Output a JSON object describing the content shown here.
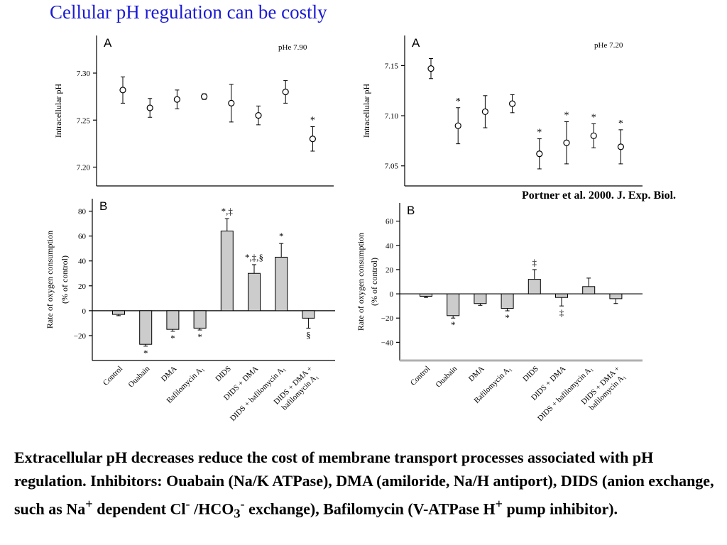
{
  "title": "Cellular pH regulation can be costly",
  "citation": "Portner et al. 2000. J. Exp. Biol.",
  "caption": {
    "p1": "Extracellular pH decreases reduce the cost of membrane transport processes associated with pH regulation.  Inhibitors: Ouabain (Na/K ATPase), DMA (amiloride, Na/H antiport), DIDS (anion exchange, such as Na",
    "sup1": "+",
    "p2": " dependent Cl",
    "sup2": "-",
    "p3": " /HCO",
    "sub1": "3",
    "sup3": "-",
    "p4": " exchange), Bafilomycin (V-ATPase H",
    "sup4": "+",
    "p5": " pump inhibitor)."
  },
  "chart_data": [
    {
      "type": "scatter",
      "panel": "A",
      "condition": "pHe 7.90",
      "ylabel": "Intracellular pH",
      "ylim": [
        7.18,
        7.34
      ],
      "yticks": [
        "7.30",
        "7.25",
        "7.20"
      ],
      "points": [
        {
          "y": 7.282,
          "err": 0.014,
          "mark": ""
        },
        {
          "y": 7.263,
          "err": 0.01,
          "mark": ""
        },
        {
          "y": 7.272,
          "err": 0.01,
          "mark": ""
        },
        {
          "y": 7.275,
          "err": 0.003,
          "mark": ""
        },
        {
          "y": 7.268,
          "err": 0.02,
          "mark": ""
        },
        {
          "y": 7.255,
          "err": 0.01,
          "mark": ""
        },
        {
          "y": 7.28,
          "err": 0.012,
          "mark": ""
        },
        {
          "y": 7.23,
          "err": 0.013,
          "mark": "*"
        }
      ]
    },
    {
      "type": "scatter",
      "panel": "A",
      "condition": "pHe 7.20",
      "ylabel": "Intracellular pH",
      "ylim": [
        7.03,
        7.18
      ],
      "yticks": [
        "7.15",
        "7.10",
        "7.05"
      ],
      "points": [
        {
          "y": 7.147,
          "err": 0.01,
          "mark": ""
        },
        {
          "y": 7.09,
          "err": 0.018,
          "mark": "*"
        },
        {
          "y": 7.104,
          "err": 0.016,
          "mark": ""
        },
        {
          "y": 7.112,
          "err": 0.009,
          "mark": ""
        },
        {
          "y": 7.062,
          "err": 0.015,
          "mark": "*"
        },
        {
          "y": 7.073,
          "err": 0.021,
          "mark": "*"
        },
        {
          "y": 7.08,
          "err": 0.012,
          "mark": "*"
        },
        {
          "y": 7.069,
          "err": 0.017,
          "mark": "*"
        }
      ]
    },
    {
      "type": "bar",
      "panel": "B",
      "ylabel": "Rate of oxygen consumption",
      "ylabel2": "(% of control)",
      "ylim": [
        -40,
        90
      ],
      "yticks": [
        80,
        60,
        40,
        20,
        0,
        -20
      ],
      "categories": [
        "Control",
        "Ouabain",
        "DMA",
        "Bafilomycin A₁",
        "DIDS",
        "DIDS + DMA",
        "DIDS + bafilomycin A₁",
        "DIDS + DMA +",
        "bafilomycin A₁"
      ],
      "bars": [
        {
          "value": -3,
          "err": 1,
          "mark": ""
        },
        {
          "value": -27,
          "err": 1.5,
          "mark": "*"
        },
        {
          "value": -15,
          "err": 1.5,
          "mark": "*"
        },
        {
          "value": -14,
          "err": 1.5,
          "mark": "*"
        },
        {
          "value": 64,
          "err": 10,
          "mark": "*,‡"
        },
        {
          "value": 30,
          "err": 7,
          "mark": "*,‡,§"
        },
        {
          "value": 43,
          "err": 11,
          "mark": "*"
        },
        {
          "value": -6,
          "err": 8,
          "mark": "§"
        }
      ]
    },
    {
      "type": "bar",
      "panel": "B",
      "ylabel": "Rate of oxygen consumption",
      "ylabel2": "(% of control)",
      "ylim": [
        -55,
        75
      ],
      "yticks": [
        60,
        40,
        20,
        0,
        -20,
        -40
      ],
      "categories": [
        "Control",
        "Ouabain",
        "DMA",
        "Bafilomycin A₁",
        "DIDS",
        "DIDS + DMA",
        "DIDS + bafilomycin A₁",
        "DIDS + DMA +",
        "bafilomycin A₁"
      ],
      "bars": [
        {
          "value": -2,
          "err": 1,
          "mark": ""
        },
        {
          "value": -18,
          "err": 2,
          "mark": "*"
        },
        {
          "value": -8,
          "err": 1.5,
          "mark": ""
        },
        {
          "value": -12,
          "err": 2,
          "mark": "*"
        },
        {
          "value": 12,
          "err": 8,
          "mark": "‡"
        },
        {
          "value": -3,
          "err": 7,
          "mark": "‡"
        },
        {
          "value": 6,
          "err": 7,
          "mark": ""
        },
        {
          "value": -4,
          "err": 4,
          "mark": ""
        }
      ]
    }
  ]
}
